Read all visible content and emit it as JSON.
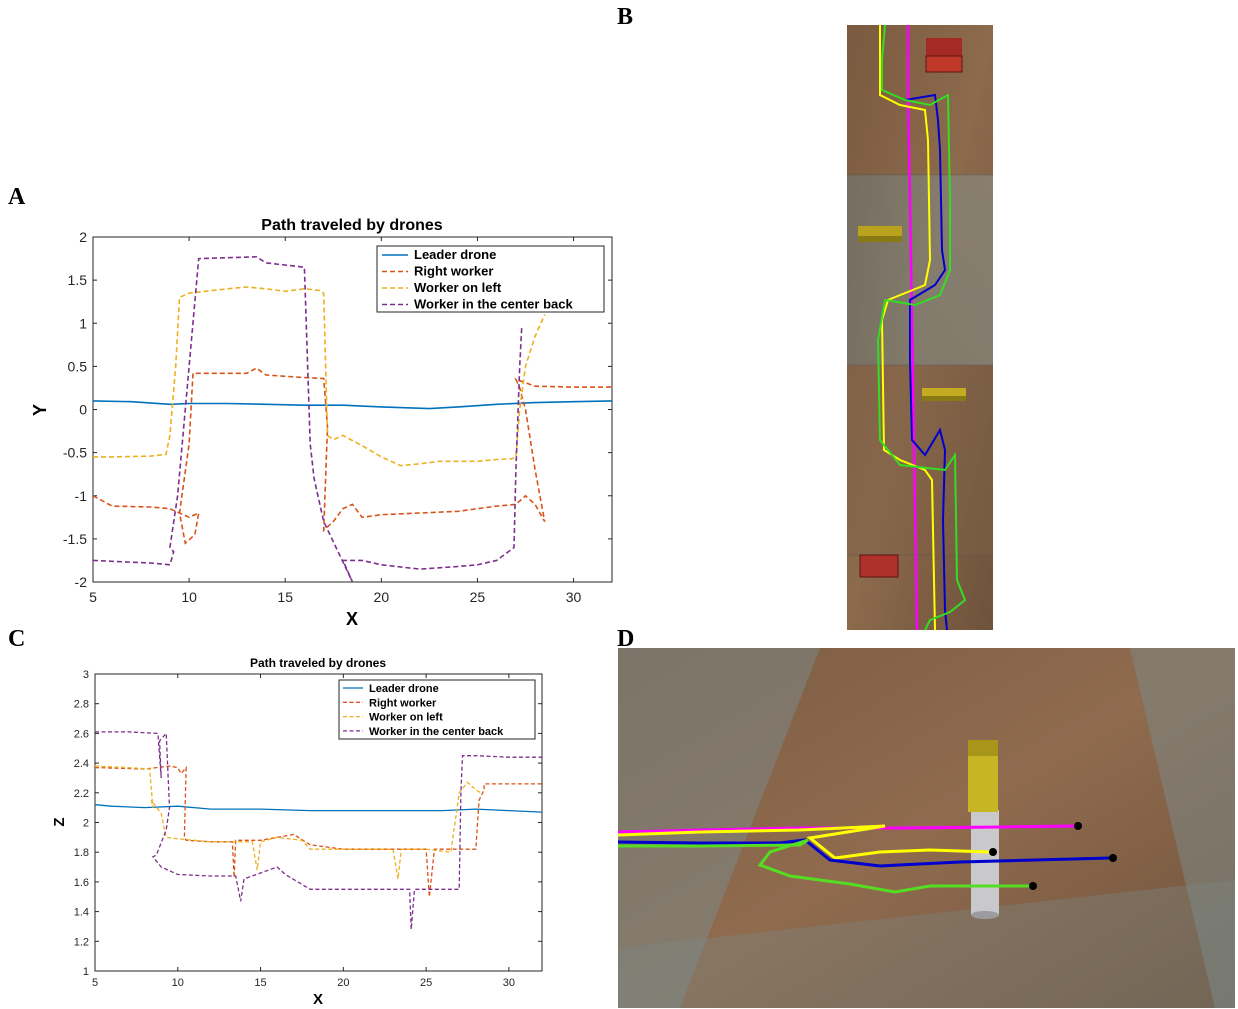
{
  "panels": {
    "a": "A",
    "b": "B",
    "c": "C",
    "d": "D"
  },
  "colors": {
    "leader": "#0072BD",
    "right": "#D95319",
    "left": "#EDB120",
    "center": "#7E2F8E"
  },
  "scene_b": {
    "description_icons": [
      "red-block-icon",
      "yellow-block-icon"
    ],
    "path_colors": [
      "#ff00ff",
      "#ffff00",
      "#0000cc",
      "#33dd22"
    ]
  },
  "scene_d": {
    "path_colors": [
      "#ff00ff",
      "#ffff00",
      "#0000cc",
      "#33dd22"
    ]
  },
  "chart_data": [
    {
      "type": "line",
      "title": "Path traveled by drones",
      "xlabel": "X",
      "ylabel": "Y",
      "xlim": [
        5,
        32
      ],
      "ylim": [
        -2,
        2
      ],
      "xticks": [
        "5",
        "10",
        "15",
        "20",
        "25",
        "30"
      ],
      "yticks": [
        "-2",
        "-1.5",
        "-1",
        "-0.5",
        "0",
        "0.5",
        "1",
        "1.5",
        "2"
      ],
      "legend_position": "top-right",
      "series": [
        {
          "name": "Leader drone",
          "style": "solid",
          "x": [
            5,
            7,
            9,
            10,
            12,
            14,
            16,
            18,
            20,
            22.5,
            24,
            26,
            28,
            30,
            32
          ],
          "y": [
            0.1,
            0.09,
            0.06,
            0.07,
            0.07,
            0.06,
            0.05,
            0.05,
            0.03,
            0.01,
            0.03,
            0.06,
            0.08,
            0.09,
            0.1
          ]
        },
        {
          "name": "Right worker",
          "style": "dashed",
          "x": [
            5,
            6,
            8,
            9,
            9.5,
            10,
            10.5,
            10.3,
            9.8,
            9.5,
            10,
            10.2,
            13,
            13.5,
            14,
            16,
            17,
            17.2,
            17,
            17.5,
            18,
            18.5,
            19,
            20,
            22,
            24,
            25,
            26,
            27,
            27.5,
            28,
            28.5,
            28,
            27.5,
            27.2,
            27,
            28,
            30,
            32
          ],
          "y": [
            -1.0,
            -1.12,
            -1.13,
            -1.15,
            -1.2,
            -1.25,
            -1.2,
            -1.45,
            -1.55,
            -1.2,
            -0.4,
            0.42,
            0.42,
            0.48,
            0.4,
            0.37,
            0.36,
            -0.2,
            -1.4,
            -1.3,
            -1.15,
            -1.1,
            -1.25,
            -1.22,
            -1.2,
            -1.18,
            -1.15,
            -1.12,
            -1.1,
            -1.0,
            -1.1,
            -1.3,
            -0.7,
            0.0,
            0.25,
            0.35,
            0.27,
            0.26,
            0.26
          ]
        },
        {
          "name": "Worker on left",
          "style": "dashed",
          "x": [
            5,
            6,
            8,
            8.8,
            9,
            9.3,
            9.5,
            10,
            12,
            13,
            14,
            15,
            16,
            16.8,
            17,
            17.2,
            17.5,
            18,
            19,
            20,
            21,
            22,
            23,
            24,
            25,
            26,
            26.8,
            27,
            27.2,
            27.5,
            28,
            28.5
          ],
          "y": [
            -0.55,
            -0.55,
            -0.54,
            -0.52,
            -0.3,
            0.5,
            1.3,
            1.35,
            1.4,
            1.42,
            1.4,
            1.37,
            1.4,
            1.38,
            1.35,
            -0.3,
            -0.35,
            -0.3,
            -0.42,
            -0.55,
            -0.65,
            -0.63,
            -0.6,
            -0.6,
            -0.6,
            -0.58,
            -0.57,
            -0.55,
            0.0,
            0.5,
            0.85,
            1.1
          ]
        },
        {
          "name": "Worker in the center back",
          "style": "dashed",
          "x": [
            5,
            7,
            8,
            9,
            9.2,
            9,
            9.4,
            10.5,
            12,
            13.5,
            14,
            16,
            16.3,
            16.5,
            17,
            18.5,
            18,
            19,
            20,
            22,
            24,
            25,
            26,
            26.9,
            27,
            27.2,
            27.3
          ],
          "y": [
            -1.75,
            -1.77,
            -1.78,
            -1.8,
            -1.65,
            -1.6,
            -1.0,
            1.75,
            1.76,
            1.77,
            1.7,
            1.65,
            -0.4,
            -0.8,
            -1.3,
            -2.0,
            -1.75,
            -1.75,
            -1.8,
            -1.85,
            -1.82,
            -1.8,
            -1.75,
            -1.6,
            -0.7,
            0.5,
            0.95
          ]
        }
      ]
    },
    {
      "type": "line",
      "title": "Path traveled by drones",
      "xlabel": "X",
      "ylabel": "Z",
      "xlim": [
        5,
        32
      ],
      "ylim": [
        1,
        3
      ],
      "xticks": [
        "5",
        "10",
        "15",
        "20",
        "25",
        "30"
      ],
      "yticks": [
        "1",
        "1.2",
        "1.4",
        "1.6",
        "1.8",
        "2",
        "2.2",
        "2.4",
        "2.6",
        "2.8",
        "3"
      ],
      "legend_position": "top-right",
      "series": [
        {
          "name": "Leader drone",
          "style": "solid",
          "x": [
            5,
            6,
            8,
            10,
            12,
            15,
            18,
            20,
            23,
            26,
            28,
            30,
            32
          ],
          "y": [
            2.12,
            2.11,
            2.1,
            2.11,
            2.09,
            2.09,
            2.08,
            2.08,
            2.08,
            2.08,
            2.09,
            2.08,
            2.07
          ]
        },
        {
          "name": "Right worker",
          "style": "dashed",
          "x": [
            5,
            8,
            9.5,
            10,
            10.2,
            10.5,
            10.4,
            10.5,
            12,
            13.3,
            13.4,
            13.5,
            15,
            17,
            18,
            20,
            23,
            25,
            25.2,
            25.5,
            26,
            28,
            28.2,
            28.5,
            28.5,
            30,
            32
          ],
          "y": [
            2.37,
            2.36,
            2.38,
            2.37,
            2.33,
            2.37,
            1.9,
            1.88,
            1.87,
            1.87,
            1.63,
            1.88,
            1.88,
            1.92,
            1.85,
            1.82,
            1.82,
            1.82,
            1.5,
            1.82,
            1.82,
            1.82,
            2.15,
            2.22,
            2.26,
            2.26,
            2.26
          ]
        },
        {
          "name": "Worker on left",
          "style": "dashed",
          "x": [
            5,
            7,
            8.3,
            8.5,
            8.4,
            9,
            9.3,
            10,
            12,
            14.5,
            14.8,
            15,
            16,
            17.5,
            18,
            20,
            23,
            23.3,
            23.5,
            25,
            26.5,
            27,
            27.5,
            28,
            28.3
          ],
          "y": [
            2.38,
            2.37,
            2.36,
            2.1,
            2.15,
            2.06,
            1.9,
            1.89,
            1.87,
            1.87,
            1.68,
            1.87,
            1.9,
            1.88,
            1.82,
            1.82,
            1.82,
            1.62,
            1.82,
            1.82,
            1.8,
            2.2,
            2.27,
            2.22,
            2.2
          ]
        },
        {
          "name": "Worker in the center back",
          "style": "dashed",
          "x": [
            5,
            7,
            8.8,
            9,
            8.9,
            9.3,
            9.5,
            9.3,
            8.7,
            8.5,
            9,
            10,
            12,
            13.5,
            13.8,
            14,
            15,
            16,
            16.5,
            18,
            20,
            23,
            24,
            24.1,
            24.3,
            25,
            27,
            27.1,
            27.2,
            28,
            30,
            32
          ],
          "y": [
            2.61,
            2.61,
            2.6,
            2.3,
            2.55,
            2.6,
            2.1,
            1.95,
            1.78,
            1.77,
            1.7,
            1.65,
            1.64,
            1.64,
            1.47,
            1.62,
            1.66,
            1.7,
            1.65,
            1.55,
            1.55,
            1.55,
            1.55,
            1.28,
            1.55,
            1.55,
            1.55,
            2.2,
            2.45,
            2.45,
            2.44,
            2.44
          ]
        }
      ]
    }
  ]
}
